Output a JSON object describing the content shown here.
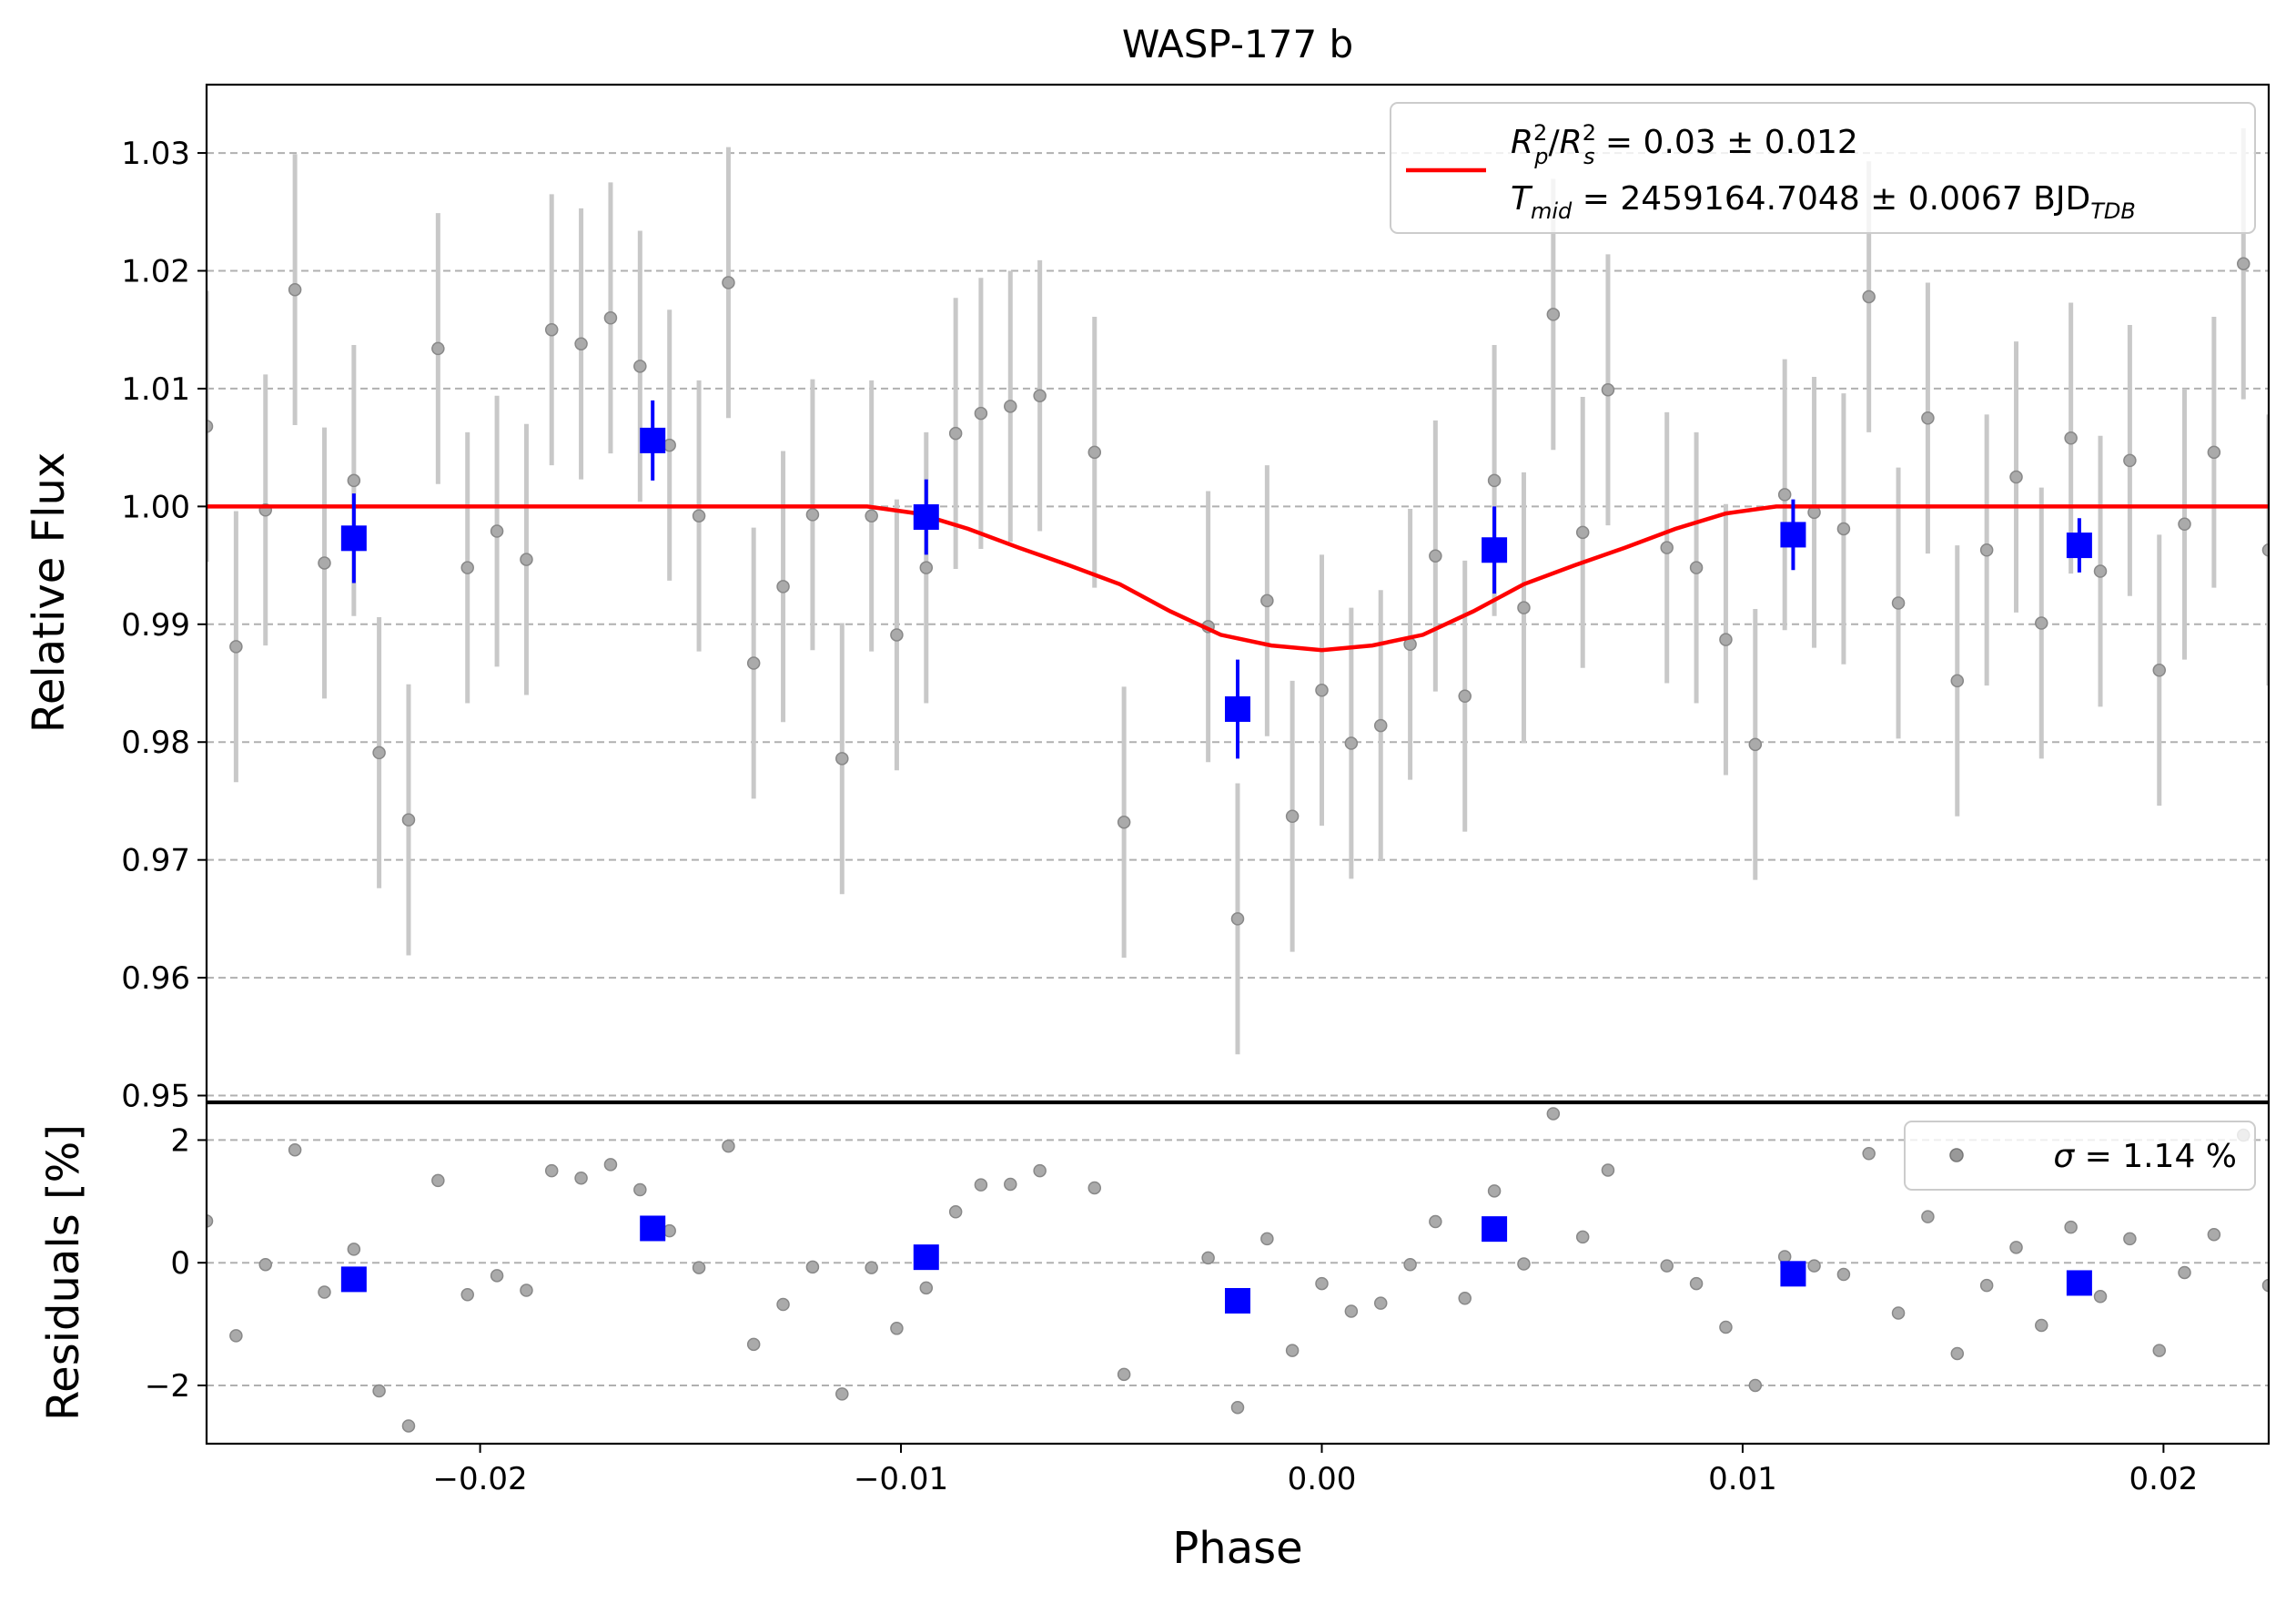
{
  "chart_data": [
    {
      "type": "scatter",
      "title": "WASP-177 b",
      "xlabel": "",
      "ylabel": "Relative Flux",
      "xlim": [
        -0.0265,
        0.0225
      ],
      "ylim": [
        0.9495,
        1.0358
      ],
      "yticks": [
        {
          "value": 0.95,
          "label": "0.95"
        },
        {
          "value": 0.96,
          "label": "0.96"
        },
        {
          "value": 0.97,
          "label": "0.97"
        },
        {
          "value": 0.98,
          "label": "0.98"
        },
        {
          "value": 0.99,
          "label": "0.99"
        },
        {
          "value": 1.0,
          "label": "1.00"
        },
        {
          "value": 1.01,
          "label": "1.01"
        },
        {
          "value": 1.02,
          "label": "1.02"
        },
        {
          "value": 1.03,
          "label": "1.03"
        }
      ],
      "grid": "horizontal dashed",
      "legend": {
        "placement": "upper-right",
        "line1": {
          "r1": "R",
          "r1sub": "p",
          "r1sup": "2",
          "r2": "R",
          "r2sub": "s",
          "r2sup": "2",
          "value": " = 0.03 ± 0.012"
        },
        "line2": {
          "t": "T",
          "tsub": "mid",
          "value": " = 2459164.7048 ± 0.0067 BJD",
          "unitsub": "TDB"
        }
      },
      "model": {
        "name": "transit model",
        "color": "#ff0000",
        "baseline": 1.0,
        "min_flux": 0.9878,
        "center": 0.0,
        "t14": 0.0224,
        "x_points": [
          -0.0265,
          -0.0108,
          -0.0096,
          -0.0084,
          -0.0072,
          -0.006,
          -0.0048,
          -0.0036,
          -0.0024,
          -0.0012,
          0.0,
          0.0012,
          0.0024,
          0.0036,
          0.0048,
          0.006,
          0.0072,
          0.0084,
          0.0096,
          0.0108,
          0.0225
        ],
        "y_points": [
          1.0,
          1.0,
          0.9994,
          0.9981,
          0.9965,
          0.995,
          0.9934,
          0.9911,
          0.9891,
          0.9882,
          0.9878,
          0.9882,
          0.9891,
          0.9911,
          0.9934,
          0.995,
          0.9965,
          0.9981,
          0.9994,
          1.0,
          1.0
        ]
      },
      "series": [
        {
          "name": "data",
          "color": "#808080",
          "x": [
            -0.0265,
            -0.0258,
            -0.0251,
            -0.0244,
            -0.0237,
            -0.023,
            -0.0224,
            -0.0217,
            -0.021,
            -0.0203,
            -0.0196,
            -0.0189,
            -0.0183,
            -0.0176,
            -0.0169,
            -0.0162,
            -0.0155,
            -0.0148,
            -0.0141,
            -0.0135,
            -0.0128,
            -0.0121,
            -0.0114,
            -0.0107,
            -0.0101,
            -0.0094,
            -0.0087,
            -0.0081,
            -0.0074,
            -0.0067,
            -0.0054,
            -0.0047,
            -0.0027,
            -0.002,
            -0.0013,
            -0.0007,
            0.0,
            0.0007,
            0.0014,
            0.0021,
            0.0027,
            0.0034,
            0.0041,
            0.0048,
            0.0055,
            0.0062,
            0.0068,
            0.0082,
            0.0089,
            0.0096,
            0.0103,
            0.011,
            0.0117,
            0.0124,
            0.013,
            0.0137,
            0.0144,
            0.0151,
            0.0158,
            0.0165,
            0.0171,
            0.0178,
            0.0185,
            0.0192,
            0.0199,
            0.0205,
            0.0212,
            0.0219,
            0.0225
          ],
          "y": [
            1.0068,
            0.9881,
            0.9997,
            1.0184,
            0.9952,
            1.0022,
            0.9791,
            0.9734,
            1.0134,
            0.9948,
            0.9979,
            0.9955,
            1.015,
            1.0138,
            1.016,
            1.0119,
            1.0052,
            0.9992,
            1.019,
            0.9867,
            0.9932,
            0.9993,
            0.9786,
            0.9992,
            0.9891,
            0.9948,
            1.0062,
            1.0079,
            1.0085,
            1.0094,
            1.0046,
            0.9732,
            0.9898,
            0.965,
            0.992,
            0.9737,
            0.9844,
            0.9799,
            0.9814,
            0.9883,
            0.9958,
            0.9839,
            1.0022,
            0.9914,
            1.0163,
            0.9978,
            1.0099,
            0.9965,
            0.9948,
            0.9887,
            0.9798,
            1.001,
            0.9995,
            0.9981,
            1.0178,
            0.9918,
            1.0075,
            0.9852,
            0.9963,
            1.0025,
            0.9901,
            1.0058,
            0.9945,
            1.0039,
            0.9861,
            0.9985,
            1.0046,
            1.0206,
            0.9963
          ],
          "yerr": [
            0.0115
          ]
        },
        {
          "name": "binned",
          "color": "#0000ff",
          "x": [
            -0.023,
            -0.0159,
            -0.0094,
            -0.002,
            0.0041,
            0.0112,
            0.018
          ],
          "y": [
            0.9973,
            1.0056,
            0.9991,
            0.9828,
            0.9963,
            0.9976,
            0.9967
          ],
          "yerr": [
            0.0038,
            0.0034,
            0.0032,
            0.0042,
            0.0037,
            0.003,
            0.0023
          ]
        }
      ]
    },
    {
      "type": "scatter",
      "title": "",
      "xlabel": "Phase",
      "ylabel": "Residuals [%]",
      "xlim": [
        -0.0265,
        0.0225
      ],
      "ylim": [
        -2.95,
        2.6
      ],
      "xticks": [
        {
          "value": -0.02,
          "label": "−0.02"
        },
        {
          "value": -0.01,
          "label": "−0.01"
        },
        {
          "value": 0.0,
          "label": "0.00"
        },
        {
          "value": 0.01,
          "label": "0.01"
        },
        {
          "value": 0.02,
          "label": "0.02"
        }
      ],
      "yticks": [
        {
          "value": -2,
          "label": "−2"
        },
        {
          "value": 0,
          "label": "0"
        },
        {
          "value": 2,
          "label": "2"
        }
      ],
      "grid": "horizontal dashed",
      "legend": {
        "placement": "upper-right",
        "sigma": "σ",
        "value": " = 1.14 %"
      },
      "series": [
        {
          "name": "residuals",
          "color": "#808080",
          "x": [
            -0.0265,
            -0.0258,
            -0.0251,
            -0.0244,
            -0.0237,
            -0.023,
            -0.0224,
            -0.0217,
            -0.021,
            -0.0203,
            -0.0196,
            -0.0189,
            -0.0183,
            -0.0176,
            -0.0169,
            -0.0162,
            -0.0155,
            -0.0148,
            -0.0141,
            -0.0135,
            -0.0128,
            -0.0121,
            -0.0114,
            -0.0107,
            -0.0101,
            -0.0094,
            -0.0087,
            -0.0081,
            -0.0074,
            -0.0067,
            -0.0054,
            -0.0047,
            -0.0027,
            -0.002,
            -0.0013,
            -0.0007,
            0.0,
            0.0007,
            0.0014,
            0.0021,
            0.0027,
            0.0034,
            0.0041,
            0.0048,
            0.0055,
            0.0062,
            0.0068,
            0.0082,
            0.0089,
            0.0096,
            0.0103,
            0.011,
            0.0117,
            0.0124,
            0.013,
            0.0137,
            0.0144,
            0.0151,
            0.0158,
            0.0165,
            0.0171,
            0.0178,
            0.0185,
            0.0192,
            0.0199,
            0.0205,
            0.0212,
            0.0219,
            0.0225
          ],
          "y": [
            0.68,
            -1.19,
            -0.03,
            1.84,
            -0.48,
            0.22,
            -2.09,
            -2.66,
            1.34,
            -0.52,
            -0.21,
            -0.45,
            1.5,
            1.38,
            1.6,
            1.19,
            0.52,
            -0.08,
            1.9,
            -1.33,
            -0.68,
            -0.07,
            -2.14,
            -0.08,
            -1.07,
            -0.41,
            0.83,
            1.27,
            1.28,
            1.5,
            1.22,
            -1.82,
            0.08,
            -2.36,
            0.39,
            -1.43,
            -0.34,
            -0.79,
            -0.66,
            -0.03,
            0.67,
            -0.58,
            1.17,
            -0.02,
            2.43,
            0.42,
            1.51,
            -0.05,
            -0.34,
            -1.05,
            -2.0,
            0.1,
            -0.05,
            -0.19,
            1.78,
            -0.82,
            0.75,
            -1.48,
            -0.37,
            0.25,
            -1.02,
            0.58,
            -0.55,
            0.39,
            -1.43,
            -0.16,
            0.46,
            2.08,
            -0.37
          ]
        },
        {
          "name": "binned residuals",
          "color": "#0000ff",
          "x": [
            -0.023,
            -0.0159,
            -0.0094,
            -0.002,
            0.0041,
            0.0112,
            0.018
          ],
          "y": [
            -0.27,
            0.56,
            0.09,
            -0.62,
            0.55,
            -0.18,
            -0.33
          ]
        }
      ]
    }
  ]
}
